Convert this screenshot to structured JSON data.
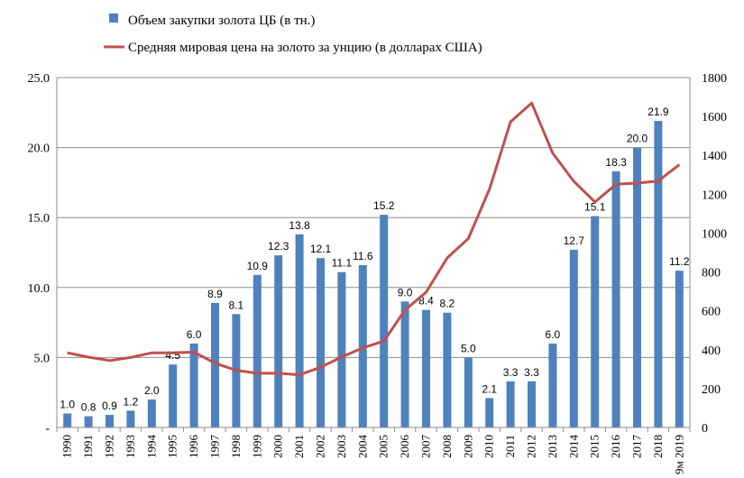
{
  "chart_data": {
    "type": "bar+line",
    "categories": [
      "1990",
      "1991",
      "1992",
      "1993",
      "1994",
      "1995",
      "1996",
      "1997",
      "1998",
      "1999",
      "2000",
      "2001",
      "2002",
      "2003",
      "2004",
      "2005",
      "2006",
      "2007",
      "2008",
      "2009",
      "2010",
      "2011",
      "2012",
      "2013",
      "2014",
      "2015",
      "2016",
      "2017",
      "2018",
      "9м 2019"
    ],
    "series": [
      {
        "name": "Объем закупки золота ЦБ (в тн.)",
        "type": "bar",
        "axis": "left",
        "color": "#4f81bd",
        "values": [
          1.0,
          0.8,
          0.9,
          1.2,
          2.0,
          4.5,
          6.0,
          8.9,
          8.1,
          10.9,
          12.3,
          13.8,
          12.1,
          11.1,
          11.6,
          15.2,
          9.0,
          8.4,
          8.2,
          5.0,
          2.1,
          3.3,
          3.3,
          6.0,
          12.7,
          15.1,
          18.3,
          20.0,
          21.9,
          11.2
        ],
        "labels": [
          "1.0",
          "0.8",
          "0.9",
          "1.2",
          "2.0",
          "4.5",
          "6.0",
          "8.9",
          "8.1",
          "10.9",
          "12.3",
          "13.8",
          "12.1",
          "11.1",
          "11.6",
          "15.2",
          "9.0",
          "8.4",
          "8.2",
          "5.0",
          "2.1",
          "3.3",
          "3.3",
          "6.0",
          "12.7",
          "15.1",
          "18.3",
          "20.0",
          "21.9",
          "11.2"
        ]
      },
      {
        "name": "Средняя мировая цена на золото за унцию (в долларах США)",
        "type": "line",
        "axis": "right",
        "color": "#c0504d",
        "values": [
          384,
          362,
          344,
          360,
          384,
          384,
          388,
          331,
          294,
          279,
          279,
          271,
          310,
          363,
          409,
          445,
          604,
          696,
          872,
          972,
          1225,
          1572,
          1669,
          1411,
          1266,
          1160,
          1251,
          1257,
          1268,
          1352
        ]
      }
    ],
    "y_left": {
      "min": 0,
      "max": 25,
      "step": 5,
      "tick_labels": [
        "-",
        "5.0",
        "10.0",
        "15.0",
        "20.0",
        "25.0"
      ]
    },
    "y_right": {
      "min": 0,
      "max": 1800,
      "step": 200,
      "tick_labels": [
        "0",
        "200",
        "400",
        "600",
        "800",
        "1000",
        "1200",
        "1400",
        "1600",
        "1800"
      ]
    },
    "grid": true,
    "legend_position": "top"
  }
}
